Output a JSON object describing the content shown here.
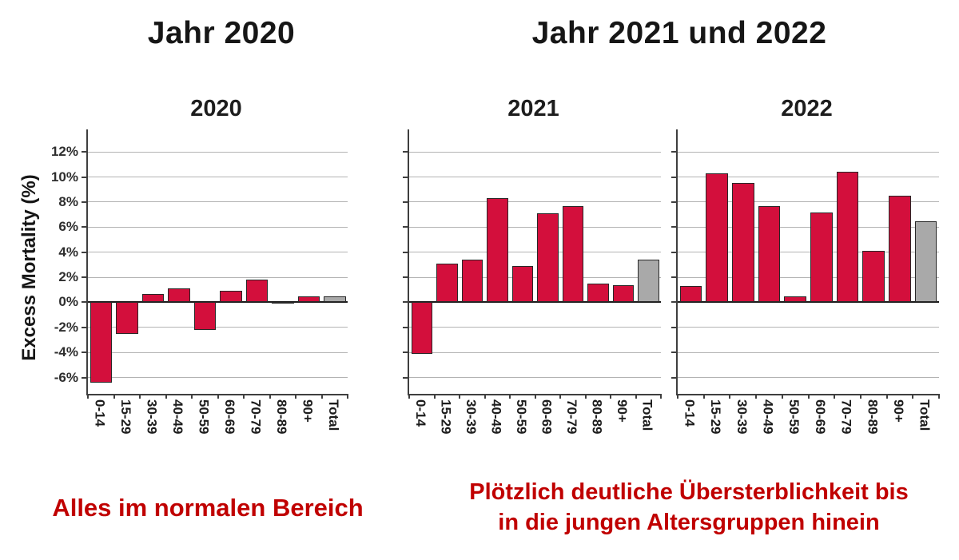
{
  "headers": {
    "left": "Jahr 2020",
    "right": "Jahr 2021 und 2022"
  },
  "captions": {
    "left": "Alles im normalen Bereich",
    "right_line1": "Plötzlich deutliche Übersterblichkeit bis",
    "right_line2": "in die jungen Altersgruppen hinein"
  },
  "colors": {
    "bar_red": "#d30f3c",
    "bar_total_gray": "#a9a9a9",
    "caption_red": "#c00000",
    "gridline_gray": "#b3b3b3"
  },
  "chart_data": {
    "type": "bar",
    "ylabel": "Excess Mortality (%)",
    "xlabel": "",
    "categories": [
      "0-14",
      "15-29",
      "30-39",
      "40-49",
      "50-59",
      "60-69",
      "70-79",
      "80-89",
      "90+",
      "Total"
    ],
    "y_ticks": [
      "12%",
      "10%",
      "8%",
      "6%",
      "4%",
      "2%",
      "0%",
      "-2%",
      "-4%",
      "-6%"
    ],
    "ylim": [
      -7.3,
      13.8
    ],
    "grid": true,
    "legend": "none",
    "highlight_last_bar": "Total bar drawn in gray, all others red",
    "series": [
      {
        "name": "2020",
        "values": [
          -6.4,
          -2.5,
          0.7,
          1.1,
          -2.2,
          0.9,
          1.8,
          0.05,
          0.5,
          0.5
        ]
      },
      {
        "name": "2021",
        "values": [
          -4.1,
          3.1,
          3.4,
          8.3,
          2.9,
          7.1,
          7.7,
          1.5,
          1.4,
          3.4
        ]
      },
      {
        "name": "2022",
        "values": [
          1.3,
          10.3,
          9.5,
          7.7,
          0.5,
          7.2,
          10.4,
          4.1,
          8.5,
          6.5
        ]
      }
    ]
  }
}
